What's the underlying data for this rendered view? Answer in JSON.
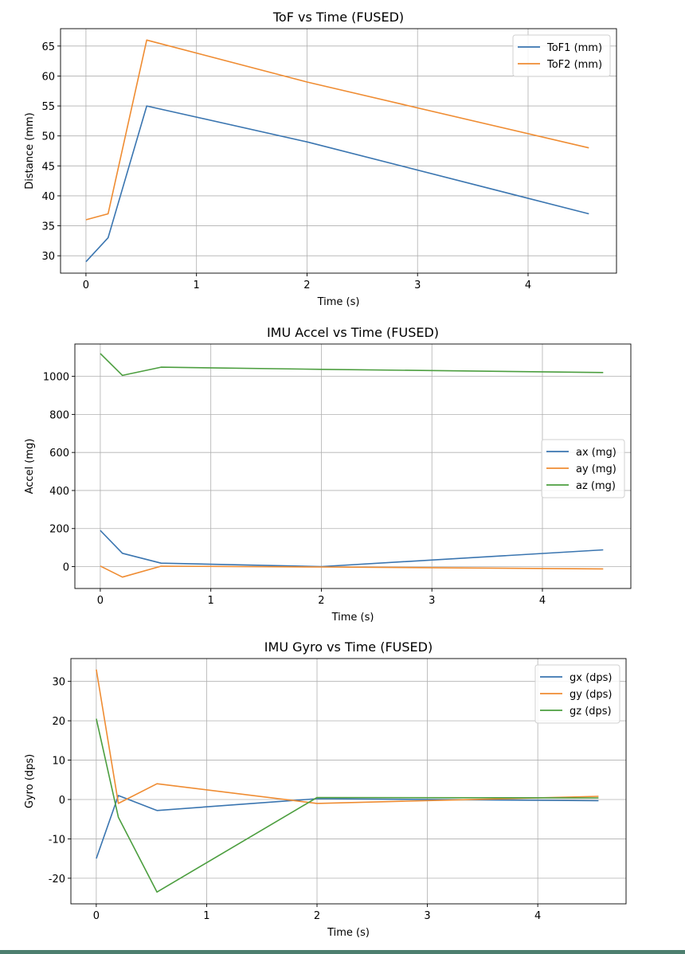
{
  "chart_data": [
    {
      "type": "line",
      "title": "ToF vs Time (FUSED)",
      "xlabel": "Time (s)",
      "ylabel": "Distance (mm)",
      "xlim": [
        -0.23,
        4.8
      ],
      "ylim": [
        27.1,
        67.9
      ],
      "xticks": [
        0,
        1,
        2,
        3,
        4
      ],
      "yticks": [
        30,
        35,
        40,
        45,
        50,
        55,
        60,
        65
      ],
      "grid": true,
      "legend_position": "top-right",
      "x": [
        0,
        0.2,
        0.55,
        2.0,
        4.55
      ],
      "series": [
        {
          "name": "ToF1 (mm)",
          "color": "#3a75b0",
          "values": [
            29,
            33,
            55,
            49,
            37
          ]
        },
        {
          "name": "ToF2 (mm)",
          "color": "#ef8c32",
          "values": [
            36,
            37,
            66,
            59,
            48
          ]
        }
      ]
    },
    {
      "type": "line",
      "title": "IMU Accel vs Time (FUSED)",
      "xlabel": "Time (s)",
      "ylabel": "Accel (mg)",
      "xlim": [
        -0.23,
        4.8
      ],
      "ylim": [
        -115,
        1170
      ],
      "xticks": [
        0,
        1,
        2,
        3,
        4
      ],
      "yticks": [
        0,
        200,
        400,
        600,
        800,
        1000
      ],
      "grid": true,
      "legend_position": "center-right",
      "x": [
        0,
        0.2,
        0.55,
        2.0,
        4.55
      ],
      "series": [
        {
          "name": "ax (mg)",
          "color": "#3a75b0",
          "values": [
            190,
            70,
            18,
            0,
            88
          ]
        },
        {
          "name": "ay (mg)",
          "color": "#ef8c32",
          "values": [
            3,
            -55,
            2,
            -2,
            -12
          ]
        },
        {
          "name": "az (mg)",
          "color": "#4c9e3f",
          "values": [
            1120,
            1005,
            1048,
            1037,
            1020
          ]
        }
      ]
    },
    {
      "type": "line",
      "title": "IMU Gyro vs Time (FUSED)",
      "xlabel": "Time (s)",
      "ylabel": "Gyro (dps)",
      "xlim": [
        -0.23,
        4.8
      ],
      "ylim": [
        -26.5,
        35.8
      ],
      "xticks": [
        0,
        1,
        2,
        3,
        4
      ],
      "yticks": [
        -20,
        -10,
        0,
        10,
        20,
        30
      ],
      "grid": true,
      "legend_position": "top-right",
      "x": [
        0,
        0.2,
        0.55,
        2.0,
        4.55
      ],
      "series": [
        {
          "name": "gx (dps)",
          "color": "#3a75b0",
          "values": [
            -15,
            1,
            -2.8,
            0.2,
            -0.3
          ]
        },
        {
          "name": "gy (dps)",
          "color": "#ef8c32",
          "values": [
            33,
            -1,
            4,
            -1,
            0.8
          ]
        },
        {
          "name": "gz (dps)",
          "color": "#4c9e3f",
          "values": [
            20.5,
            -4.5,
            -23.5,
            0.5,
            0.4
          ]
        }
      ]
    }
  ]
}
